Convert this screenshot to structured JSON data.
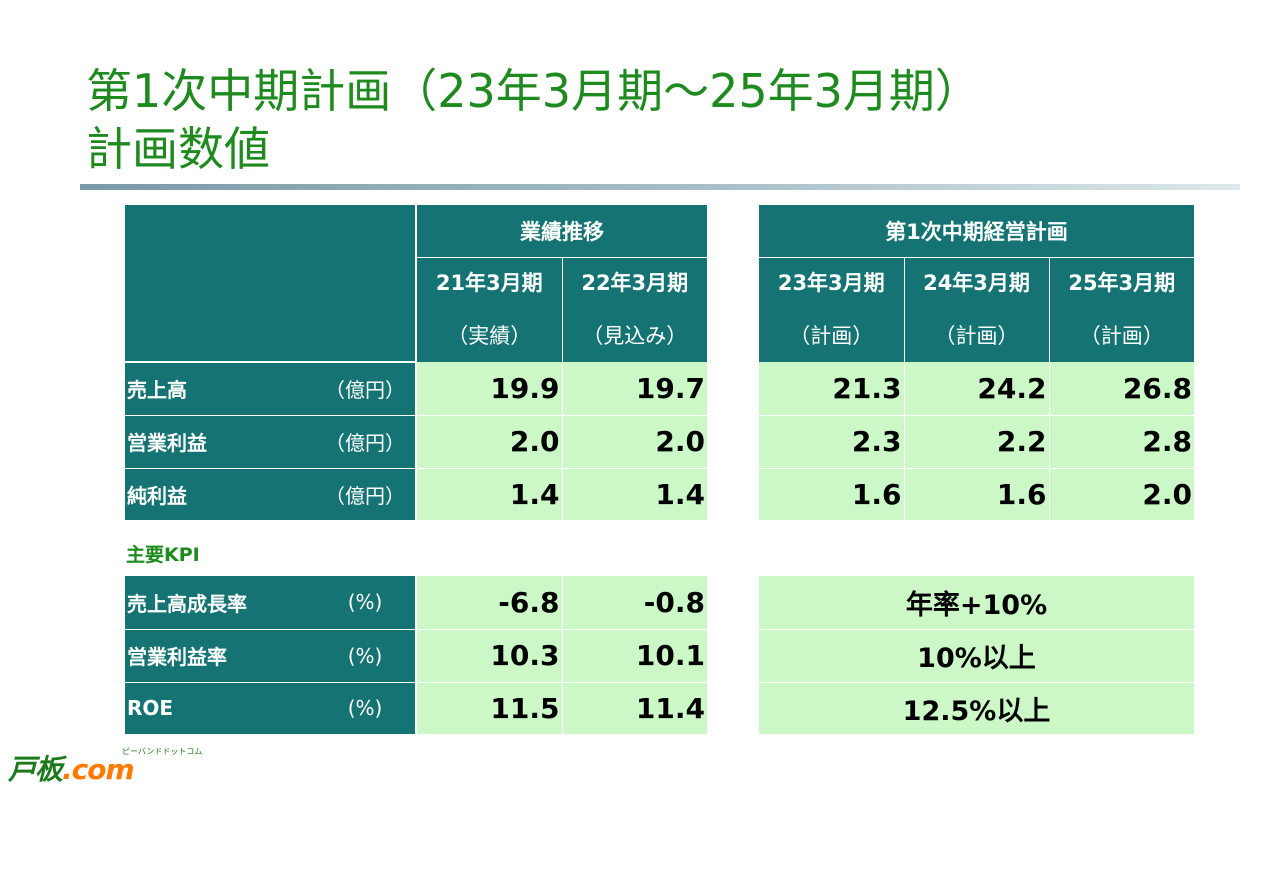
{
  "title": {
    "line1": "第1次中期計画（23年3月期～25年3月期）",
    "line2": "計画数値"
  },
  "groups": {
    "results": "業績推移",
    "plan": "第1次中期経営計画"
  },
  "periods": [
    {
      "label": "21年3月期",
      "status": "（実績）"
    },
    {
      "label": "22年3月期",
      "status": "（見込み）"
    },
    {
      "label": "23年3月期",
      "status": "（計画）"
    },
    {
      "label": "24年3月期",
      "status": "（計画）"
    },
    {
      "label": "25年3月期",
      "status": "（計画）"
    }
  ],
  "financials": [
    {
      "label": "売上高",
      "unit": "（億円）",
      "values": [
        "19.9",
        "19.7",
        "21.3",
        "24.2",
        "26.8"
      ]
    },
    {
      "label": "営業利益",
      "unit": "（億円）",
      "values": [
        "2.0",
        "2.0",
        "2.3",
        "2.2",
        "2.8"
      ]
    },
    {
      "label": "純利益",
      "unit": "（億円）",
      "values": [
        "1.4",
        "1.4",
        "1.6",
        "1.6",
        "2.0"
      ]
    }
  ],
  "kpi_heading": "主要KPI",
  "kpis": [
    {
      "label": "売上高成長率",
      "unit": "(%)",
      "values": [
        "-6.8",
        "-0.8"
      ],
      "target": "年率+10%"
    },
    {
      "label": "営業利益率",
      "unit": "(%)",
      "values": [
        "10.3",
        "10.1"
      ],
      "target": "10%以上"
    },
    {
      "label": "ROE",
      "unit": "(%)",
      "values": [
        "11.5",
        "11.4"
      ],
      "target": "12.5%以上"
    }
  ],
  "logo": {
    "part1": "戸板",
    "part2": ".com",
    "ruby": "ピーバンドドットコム"
  },
  "colors": {
    "title_green": "#1f8a1f",
    "header_teal": "#157473",
    "cell_green": "#ccf8c8"
  }
}
